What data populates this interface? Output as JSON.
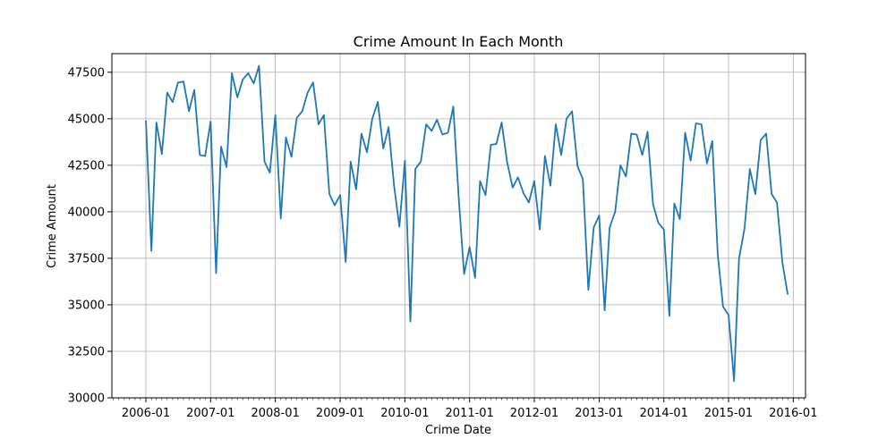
{
  "chart_data": {
    "type": "line",
    "title": "Crime Amount In Each Month",
    "xlabel": "Crime Date",
    "ylabel": "Crime Amount",
    "xlim": [
      "2005-06-23",
      "2016-03-10"
    ],
    "ylim": [
      30000,
      48500
    ],
    "yticks": [
      30000,
      32500,
      35000,
      37500,
      40000,
      42500,
      45000,
      47500
    ],
    "xticks": [
      "2006-01",
      "2007-01",
      "2008-01",
      "2009-01",
      "2010-01",
      "2011-01",
      "2012-01",
      "2013-01",
      "2014-01",
      "2015-01",
      "2016-01"
    ],
    "grid": true,
    "line_color": "#1f77b4",
    "series": [
      {
        "x": [
          "2006-01",
          "2006-02",
          "2006-03",
          "2006-04",
          "2006-05",
          "2006-06",
          "2006-07",
          "2006-08",
          "2006-09",
          "2006-10",
          "2006-11",
          "2006-12",
          "2007-01",
          "2007-02",
          "2007-03",
          "2007-04",
          "2007-05",
          "2007-06",
          "2007-07",
          "2007-08",
          "2007-09",
          "2007-10",
          "2007-11",
          "2007-12",
          "2008-01",
          "2008-02",
          "2008-03",
          "2008-04",
          "2008-05",
          "2008-06",
          "2008-07",
          "2008-08",
          "2008-09",
          "2008-10",
          "2008-11",
          "2008-12",
          "2009-01",
          "2009-02",
          "2009-03",
          "2009-04",
          "2009-05",
          "2009-06",
          "2009-07",
          "2009-08",
          "2009-09",
          "2009-10",
          "2009-11",
          "2009-12",
          "2010-01",
          "2010-02",
          "2010-03",
          "2010-04",
          "2010-05",
          "2010-06",
          "2010-07",
          "2010-08",
          "2010-09",
          "2010-10",
          "2010-11",
          "2010-12",
          "2011-01",
          "2011-02",
          "2011-03",
          "2011-04",
          "2011-05",
          "2011-06",
          "2011-07",
          "2011-08",
          "2011-09",
          "2011-10",
          "2011-11",
          "2011-12",
          "2012-01",
          "2012-02",
          "2012-03",
          "2012-04",
          "2012-05",
          "2012-06",
          "2012-07",
          "2012-08",
          "2012-09",
          "2012-10",
          "2012-11",
          "2012-12",
          "2013-01",
          "2013-02",
          "2013-03",
          "2013-04",
          "2013-05",
          "2013-06",
          "2013-07",
          "2013-08",
          "2013-09",
          "2013-10",
          "2013-11",
          "2013-12",
          "2014-01",
          "2014-02",
          "2014-03",
          "2014-04",
          "2014-05",
          "2014-06",
          "2014-07",
          "2014-08",
          "2014-09",
          "2014-10",
          "2014-11",
          "2014-12",
          "2015-01",
          "2015-02",
          "2015-03",
          "2015-04",
          "2015-05",
          "2015-06",
          "2015-07",
          "2015-08",
          "2015-09",
          "2015-10",
          "2015-11",
          "2015-12"
        ],
        "values": [
          44900,
          37900,
          44800,
          43100,
          46400,
          45900,
          46950,
          47000,
          45400,
          46550,
          43050,
          43000,
          44850,
          36700,
          43500,
          42400,
          47450,
          46150,
          47100,
          47450,
          46900,
          47850,
          42700,
          42100,
          45200,
          39650,
          44000,
          42950,
          45050,
          45400,
          46400,
          46950,
          44700,
          45200,
          40950,
          40350,
          40900,
          37300,
          42700,
          41200,
          44200,
          43200,
          45000,
          45900,
          43400,
          44550,
          41400,
          39200,
          42750,
          34100,
          42300,
          42700,
          44700,
          44350,
          44950,
          44150,
          44250,
          45650,
          40700,
          36650,
          38100,
          36450,
          41650,
          40900,
          43600,
          43650,
          44800,
          42650,
          41300,
          41850,
          41000,
          40500,
          41650,
          39050,
          43000,
          41400,
          44700,
          43050,
          45000,
          45400,
          42450,
          41750,
          35800,
          39150,
          39800,
          34700,
          39150,
          40000,
          42500,
          41900,
          44200,
          44150,
          43050,
          44300,
          40400,
          39400,
          39050,
          34400,
          40450,
          39600,
          44250,
          42750,
          44750,
          44700,
          42600,
          43800,
          37700,
          34900,
          34450,
          30900,
          37500,
          39100,
          42300,
          40950,
          43850,
          44200,
          40950,
          40500,
          37250,
          35550
        ]
      }
    ]
  }
}
